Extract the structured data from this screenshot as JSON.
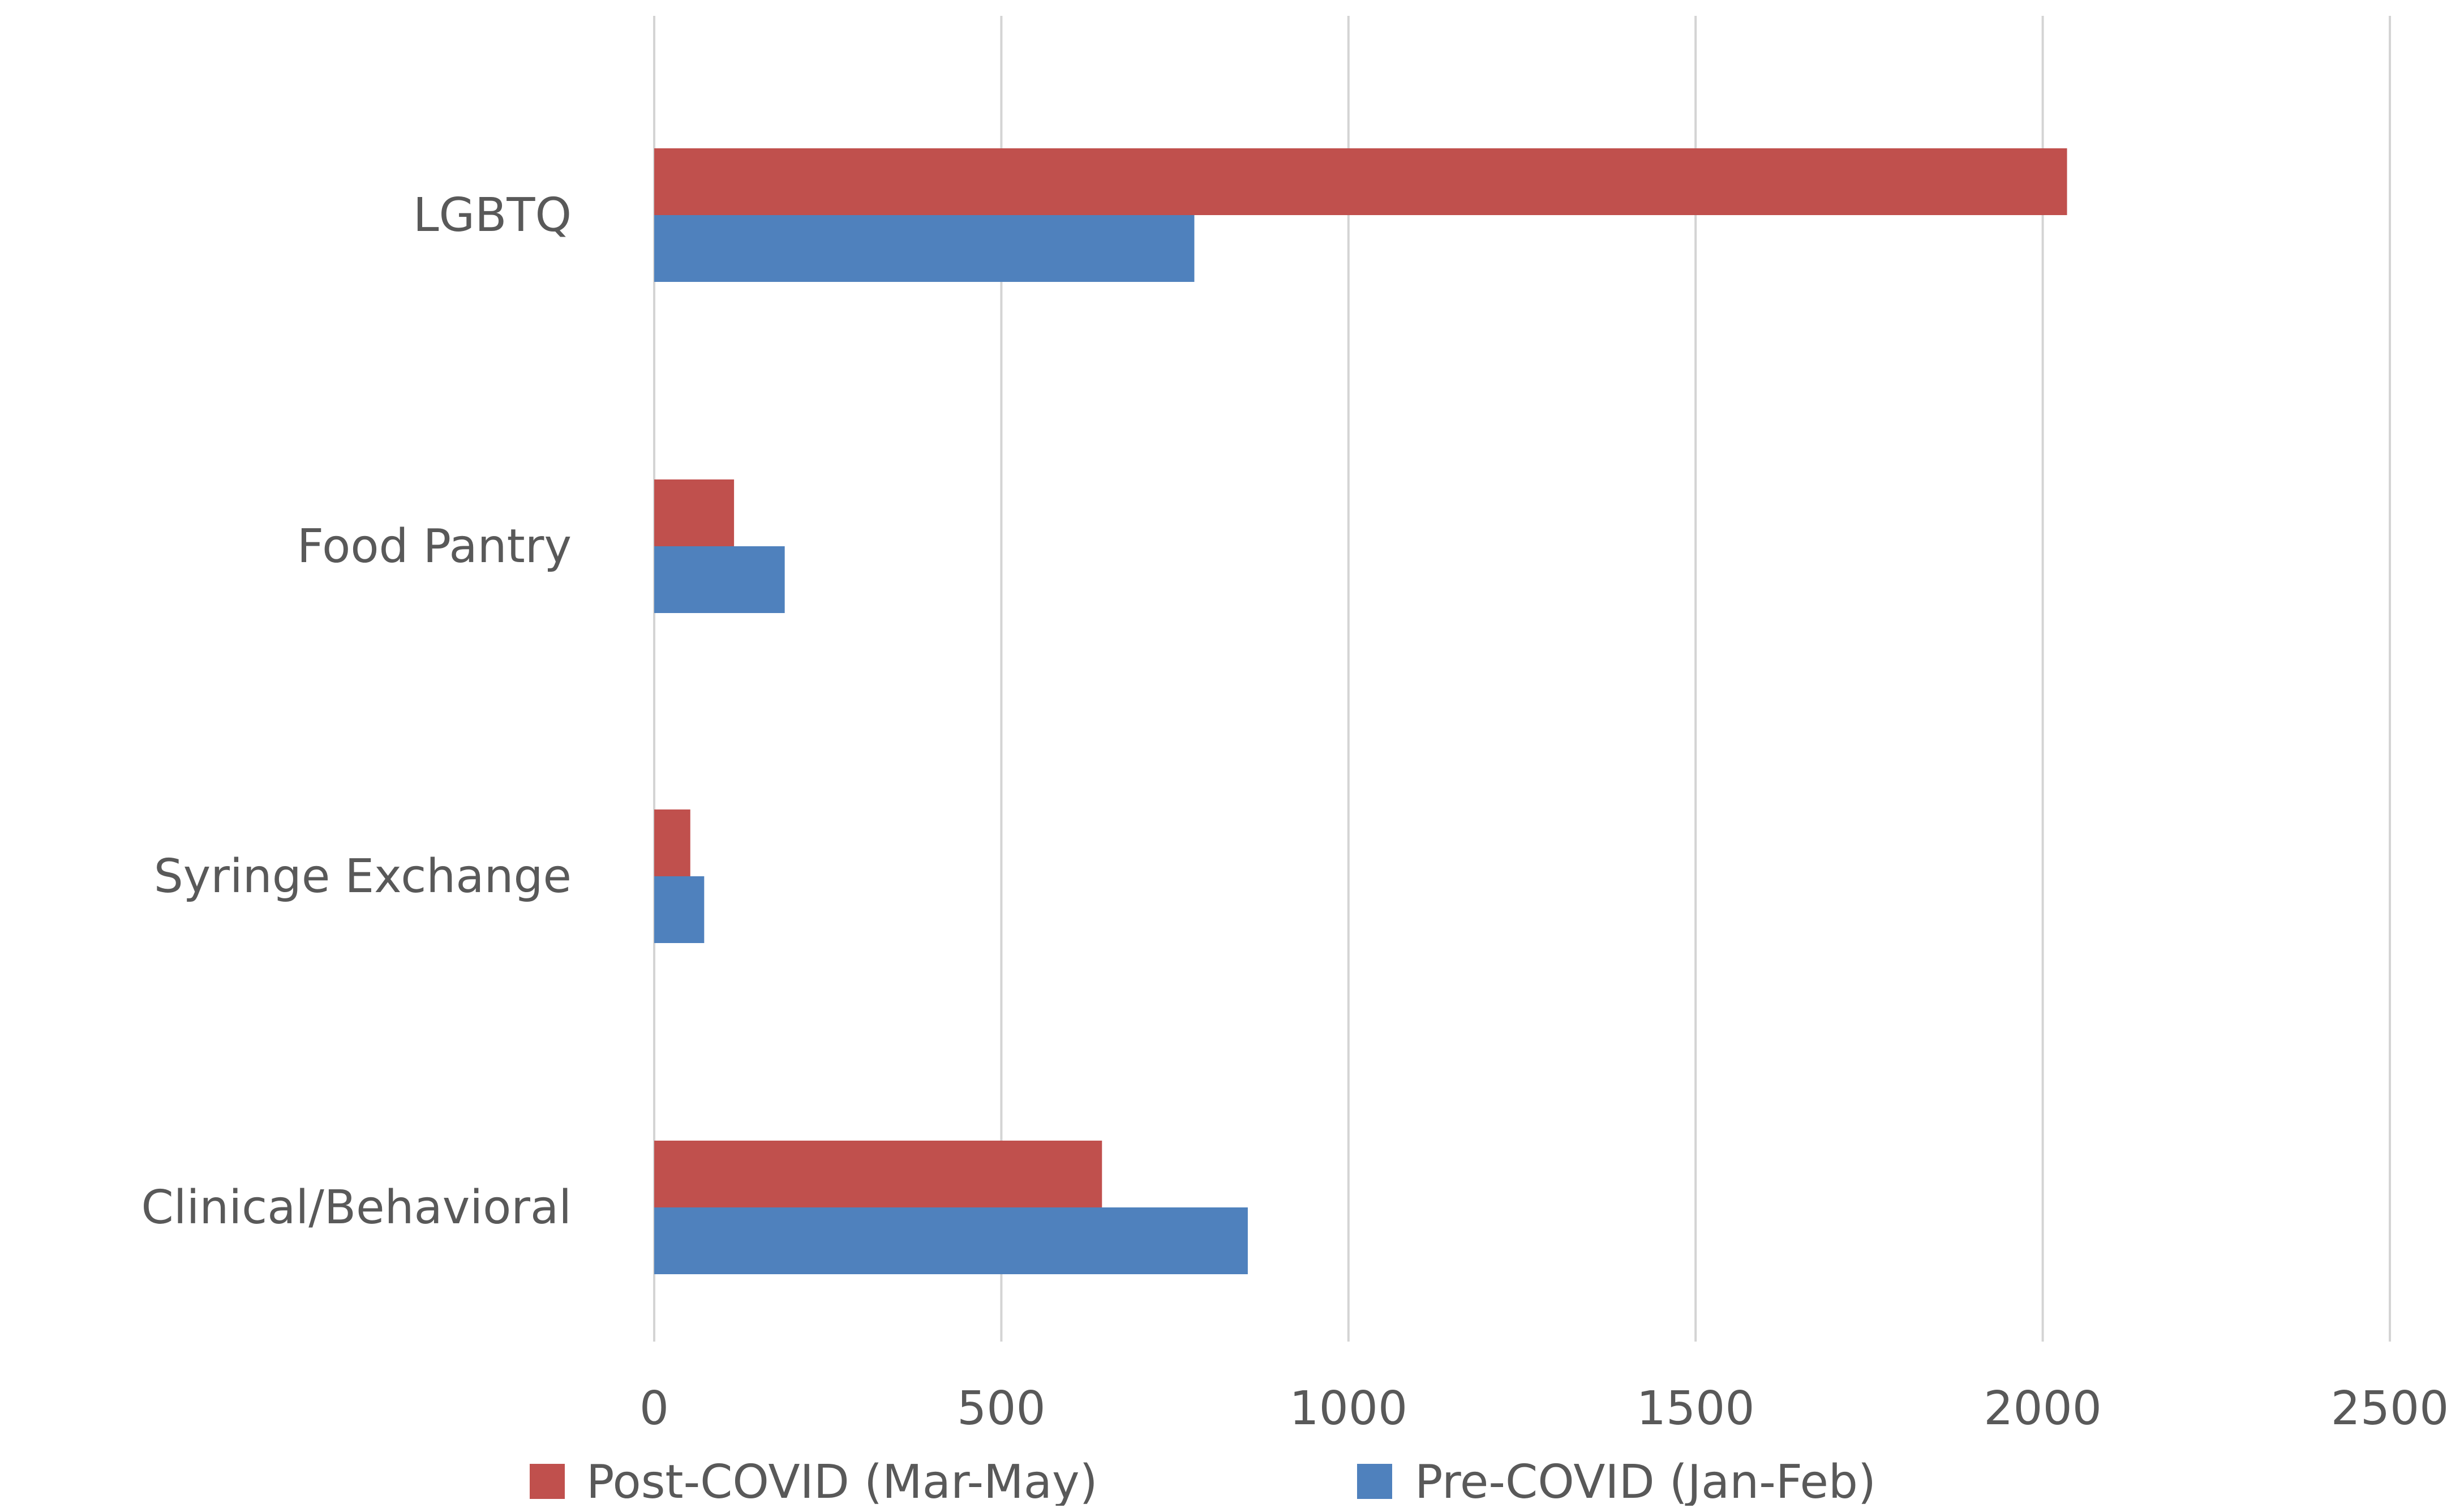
{
  "chart_data": {
    "type": "bar",
    "orientation": "horizontal",
    "title": "",
    "xlabel": "",
    "ylabel": "",
    "categories": [
      "LGBTQ",
      "Food Pantry",
      "Syringe Exchange",
      "Clinical/Behavioral"
    ],
    "series": [
      {
        "name": "Post-COVID (Mar-May)",
        "color": "#c0504d",
        "values": [
          2035,
          115,
          52,
          645
        ]
      },
      {
        "name": "Pre-COVID (Jan-Feb)",
        "color": "#4f81bd",
        "values": [
          778,
          188,
          72,
          855
        ]
      }
    ],
    "xlim": [
      0,
      2500
    ],
    "x_ticks": [
      "0",
      "500",
      "1000",
      "1500",
      "2000",
      "2500"
    ],
    "grid": "vertical",
    "legend_position": "bottom"
  }
}
